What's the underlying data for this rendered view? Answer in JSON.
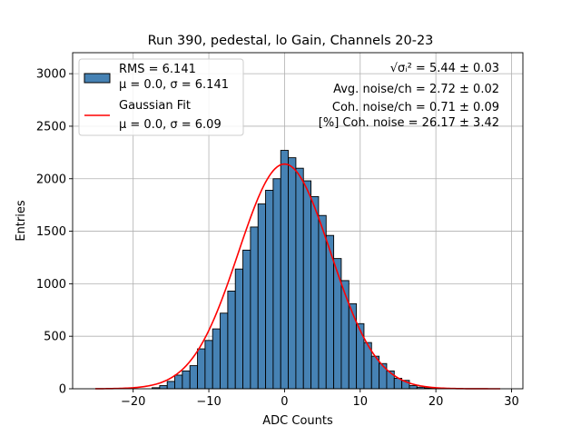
{
  "chart_data": {
    "type": "bar",
    "title": "Run 390, pedestal, lo Gain, Channels 20-23",
    "xlabel": "ADC Counts",
    "ylabel": "Entries",
    "xlim": [
      -28,
      31.5
    ],
    "ylim": [
      0,
      3200
    ],
    "x_ticks": [
      -20,
      -10,
      0,
      10,
      20,
      30
    ],
    "y_ticks": [
      0,
      500,
      1000,
      1500,
      2000,
      2500,
      3000
    ],
    "x_tick_labels": [
      "−20",
      "−10",
      "0",
      "10",
      "20",
      "30"
    ],
    "y_tick_labels": [
      "0",
      "500",
      "1000",
      "1500",
      "2000",
      "2500",
      "3000"
    ],
    "grid": true,
    "legend_position": "top-left",
    "histogram": {
      "name_line1": "RMS = 6.141",
      "name_line2": "μ = 0.0, σ = 6.141",
      "color": "#4682b4",
      "edge_color": "#000000",
      "bin_width": 1,
      "bin_centers": [
        -25,
        -24,
        -23,
        -22,
        -21,
        -20,
        -19,
        -18,
        -17,
        -16,
        -15,
        -14,
        -13,
        -12,
        -11,
        -10,
        -9,
        -8,
        -7,
        -6,
        -5,
        -4,
        -3,
        -2,
        -1,
        0,
        1,
        2,
        3,
        4,
        5,
        6,
        7,
        8,
        9,
        10,
        11,
        12,
        13,
        14,
        15,
        16,
        17,
        18,
        19,
        20,
        21,
        22,
        23,
        24,
        25,
        26,
        27,
        28,
        29
      ],
      "counts": [
        0,
        0,
        0,
        0,
        0,
        0,
        0,
        0,
        10,
        30,
        70,
        130,
        170,
        220,
        380,
        460,
        570,
        720,
        930,
        1140,
        1320,
        1540,
        1760,
        1890,
        2000,
        2270,
        2200,
        2100,
        1980,
        1830,
        1650,
        1460,
        1240,
        1030,
        810,
        620,
        440,
        310,
        240,
        170,
        100,
        80,
        30,
        15,
        8,
        4,
        2,
        1,
        0,
        0,
        0,
        0,
        0,
        0,
        0
      ]
    },
    "gaussian_fit": {
      "name_line1": "Gaussian Fit",
      "name_line2": "μ = 0.0, σ = 6.09",
      "color": "#ff0000",
      "mu": 0.0,
      "sigma": 6.09,
      "amplitude": 2140,
      "x_range": [
        -25,
        28.5
      ]
    },
    "annotations": {
      "line1_formula": "√σᵢ²",
      "line1_value": " = 5.44 ± 0.03",
      "line2": "Avg. noise/ch = 2.72 ± 0.02",
      "line3": "Coh. noise/ch = 0.71 ± 0.09",
      "line4": "[%] Coh. noise = 26.17 ± 3.42"
    }
  }
}
